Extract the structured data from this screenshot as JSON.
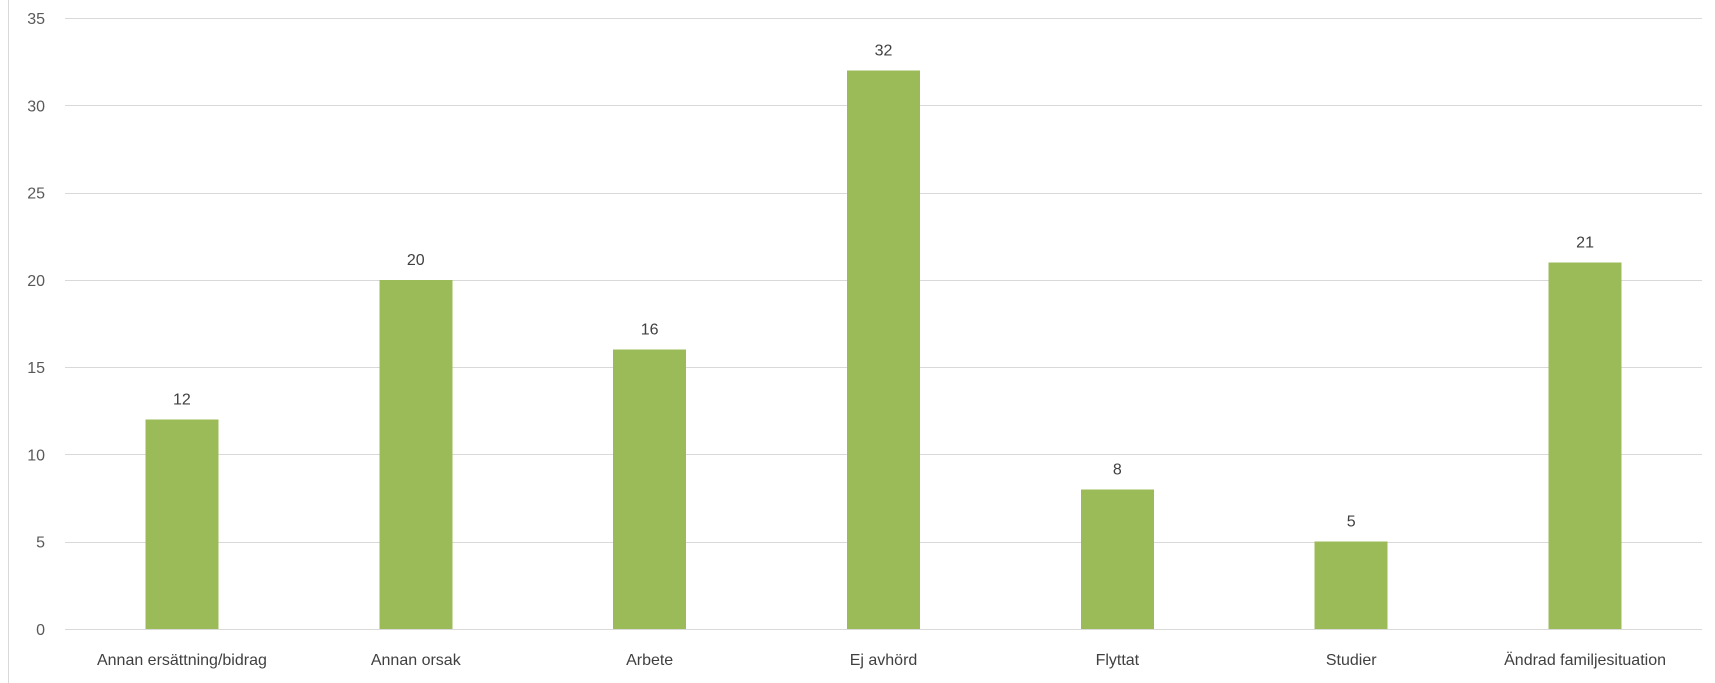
{
  "chart_data": {
    "type": "bar",
    "title": "",
    "xlabel": "",
    "ylabel": "",
    "categories": [
      "Annan ersättning/bidrag",
      "Annan orsak",
      "Arbete",
      "Ej avhörd",
      "Flyttat",
      "Studier",
      "Ändrad familjesituation"
    ],
    "values": [
      12,
      20,
      16,
      32,
      8,
      5,
      21
    ],
    "ylim": [
      0,
      35
    ],
    "yticks": [
      "0",
      "5",
      "10",
      "15",
      "20",
      "25",
      "30",
      "35"
    ],
    "grid": true,
    "legend": "none",
    "bar_color": "#9bbb59"
  }
}
